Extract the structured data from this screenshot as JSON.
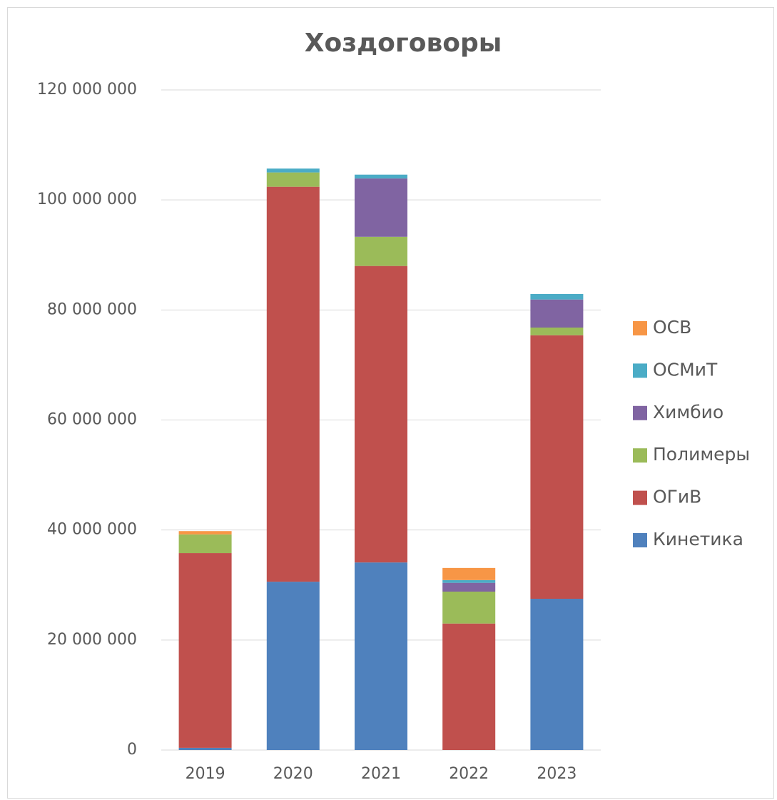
{
  "chart_data": {
    "type": "stacked_bar",
    "title": "Хоздоговоры",
    "categories": [
      "2019",
      "2020",
      "2021",
      "2022",
      "2023"
    ],
    "series": [
      {
        "name": "Кинетика",
        "color": "#4f81bd",
        "values": [
          400000,
          30600000,
          34100000,
          0,
          27500000
        ]
      },
      {
        "name": "ОГиВ",
        "color": "#c0504d",
        "values": [
          35400000,
          71800000,
          53900000,
          23000000,
          47900000
        ]
      },
      {
        "name": "Полимеры",
        "color": "#9bbb59",
        "values": [
          3400000,
          2600000,
          5300000,
          5800000,
          1400000
        ]
      },
      {
        "name": "Химбио",
        "color": "#8064a2",
        "values": [
          0,
          0,
          10600000,
          1600000,
          5100000
        ]
      },
      {
        "name": "ОСМиТ",
        "color": "#4bacc6",
        "values": [
          0,
          700000,
          700000,
          500000,
          1000000
        ]
      },
      {
        "name": "ОСВ",
        "color": "#f79646",
        "values": [
          600000,
          0,
          0,
          2200000,
          0
        ]
      }
    ],
    "ylim": [
      0,
      120000000
    ],
    "yticks": [
      0,
      {
        "value": 20000000,
        "label": "20 000 000"
      },
      {
        "value": 40000000,
        "label": "40 000 000"
      },
      {
        "value": 60000000,
        "label": "60 000 000"
      },
      {
        "value": 80000000,
        "label": "80 000 000"
      },
      {
        "value": 100000000,
        "label": "100 000 000"
      },
      {
        "value": 120000000,
        "label": "120 000 000"
      }
    ],
    "grid": true,
    "legend": "right"
  }
}
